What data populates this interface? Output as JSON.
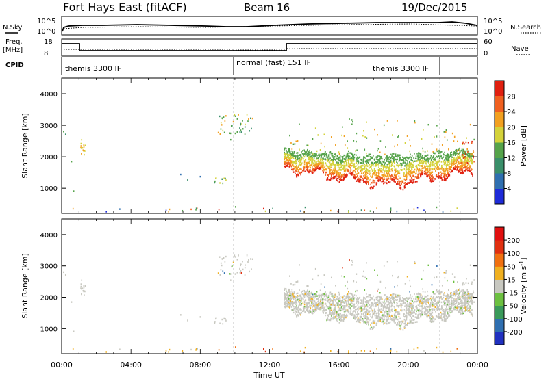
{
  "header": {
    "title": "Fort Hays East (fitACF)",
    "beam": "Beam 16",
    "date": "19/Dec/2015"
  },
  "params": {
    "nsky_label": "N.Sky",
    "nsearch_label": "N.Search",
    "freq_label": "Freq.",
    "freq_unit": "[MHz]",
    "nave_label": "Nave",
    "cpid_label": "CPID",
    "noise_ticks": [
      "10^5",
      "10^0"
    ],
    "freq_ticks": [
      "18",
      "8"
    ],
    "nave_ticks": [
      "60",
      "0"
    ],
    "cpid_segments": [
      {
        "label": "themis 3300 IF",
        "start": 0.0
      },
      {
        "label": "normal (fast) 151 IF",
        "start": 10.0
      },
      {
        "label": "themis 3300 IF",
        "start": 22.0
      }
    ]
  },
  "chart_data": [
    {
      "type": "heatmap",
      "title": "",
      "ylabel": "Slant Range [km]",
      "xlabel": "",
      "xlim": [
        0,
        24
      ],
      "ylim": [
        200,
        4500
      ],
      "yticks": [
        "1000",
        "2000",
        "3000",
        "4000"
      ],
      "colorbar": {
        "label": "Power [dB]",
        "ticks": [
          "4",
          "8",
          "12",
          "16",
          "20",
          "24",
          "28"
        ],
        "colors": [
          "#1e2bd8",
          "#2f6fb0",
          "#3a8f6a",
          "#55a34a",
          "#d4d23a",
          "#f2a020",
          "#f06020",
          "#e02010"
        ]
      }
    },
    {
      "type": "heatmap",
      "title": "",
      "ylabel": "Slant Range [km]",
      "xlabel": "Time UT",
      "xlim": [
        0,
        24
      ],
      "ylim": [
        200,
        4500
      ],
      "yticks": [
        "1000",
        "2000",
        "3000",
        "4000"
      ],
      "xticks": [
        "00:00",
        "04:00",
        "08:00",
        "12:00",
        "16:00",
        "20:00",
        "00:00"
      ],
      "colorbar": {
        "label": "Velocity [m s",
        "label_sup": "-1",
        "label_close": "]",
        "ticks": [
          "200",
          "100",
          "50",
          "15",
          "-15",
          "-50",
          "-100",
          "-200"
        ],
        "colors": [
          "#2030c0",
          "#2f6fb0",
          "#3a9a5a",
          "#6cc040",
          "#c8c8c0",
          "#f0b020",
          "#f07010",
          "#e03010",
          "#e01010"
        ]
      }
    }
  ]
}
